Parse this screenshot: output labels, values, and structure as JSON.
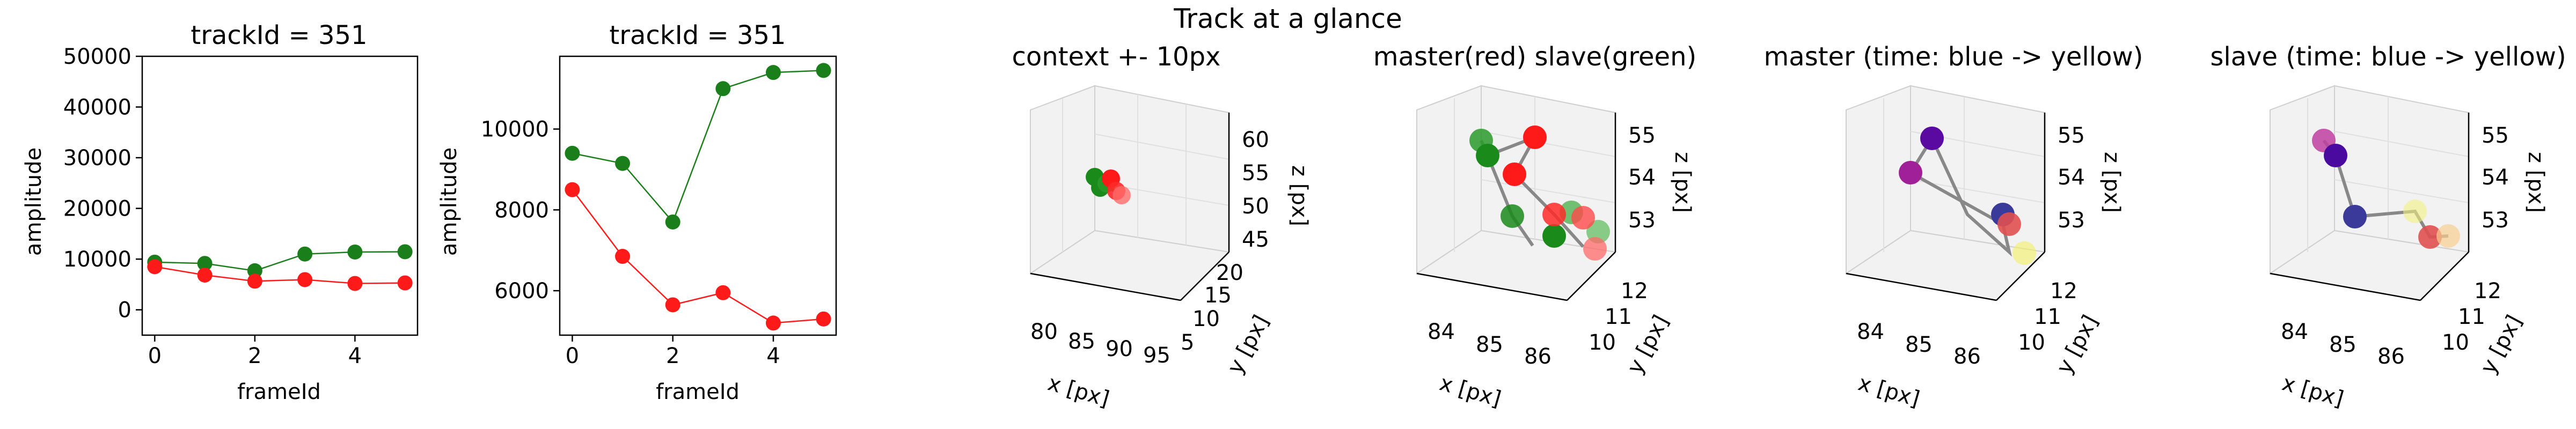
{
  "suptitle": "Track at a glance",
  "chart_data": [
    {
      "type": "line",
      "title": "trackId = 351",
      "xlabel": "frameId",
      "ylabel": "amplitude",
      "x": [
        0,
        1,
        2,
        3,
        4,
        5
      ],
      "xlim": [
        -0.25,
        5.25
      ],
      "ylim": [
        -5000,
        50000
      ],
      "xticks": [
        "0",
        "2",
        "4"
      ],
      "yticks": [
        "0",
        "10000",
        "20000",
        "30000",
        "40000",
        "50000"
      ],
      "series": [
        {
          "color": "#1a7f1a",
          "values": [
            9400,
            9150,
            7700,
            11000,
            11400,
            11450
          ]
        },
        {
          "color": "#ff1a1a",
          "values": [
            8500,
            6850,
            5650,
            5950,
            5200,
            5300
          ]
        }
      ]
    },
    {
      "type": "line",
      "title": "trackId = 351",
      "xlabel": "frameId",
      "ylabel": "amplitude",
      "x": [
        0,
        1,
        2,
        3,
        4,
        5
      ],
      "xlim": [
        -0.25,
        5.25
      ],
      "ylim": [
        4900,
        11800
      ],
      "xticks": [
        "0",
        "2",
        "4"
      ],
      "yticks": [
        "6000",
        "8000",
        "10000"
      ],
      "series": [
        {
          "color": "#1a7f1a",
          "values": [
            9400,
            9150,
            7700,
            11000,
            11400,
            11450
          ]
        },
        {
          "color": "#ff1a1a",
          "values": [
            8500,
            6850,
            5650,
            5950,
            5200,
            5300
          ]
        }
      ]
    },
    {
      "type": "scatter",
      "title": "context +- 10px",
      "xlabel": "x [px]",
      "ylabel": "y [px]",
      "zlabel": "z [px]",
      "xticks": [
        "80",
        "85",
        "90",
        "95"
      ],
      "yticks": [
        "5",
        "10",
        "15",
        "20"
      ],
      "zticks": [
        "45",
        "50",
        "55",
        "60"
      ],
      "points_red": 3,
      "points_green": 3
    },
    {
      "type": "scatter",
      "title": "master(red) slave(green)",
      "xlabel": "x [px]",
      "ylabel": "y [px]",
      "zlabel": "z [px]",
      "xticks": [
        "84",
        "85",
        "86"
      ],
      "yticks": [
        "10",
        "11",
        "12"
      ],
      "zticks": [
        "53",
        "54",
        "55"
      ]
    },
    {
      "type": "scatter",
      "title": "master (time: blue -> yellow)",
      "xlabel": "x [px]",
      "ylabel": "y [px]",
      "zlabel": "z [px]",
      "xticks": [
        "84",
        "85",
        "86"
      ],
      "yticks": [
        "10",
        "11",
        "12"
      ],
      "zticks": [
        "53",
        "54",
        "55"
      ]
    },
    {
      "type": "scatter",
      "title": "slave (time: blue -> yellow)",
      "xlabel": "x [px]",
      "ylabel": "y [px]",
      "zlabel": "z [px]",
      "xticks": [
        "84",
        "85",
        "86"
      ],
      "yticks": [
        "10",
        "11",
        "12"
      ],
      "zticks": [
        "53",
        "54",
        "55"
      ]
    }
  ]
}
